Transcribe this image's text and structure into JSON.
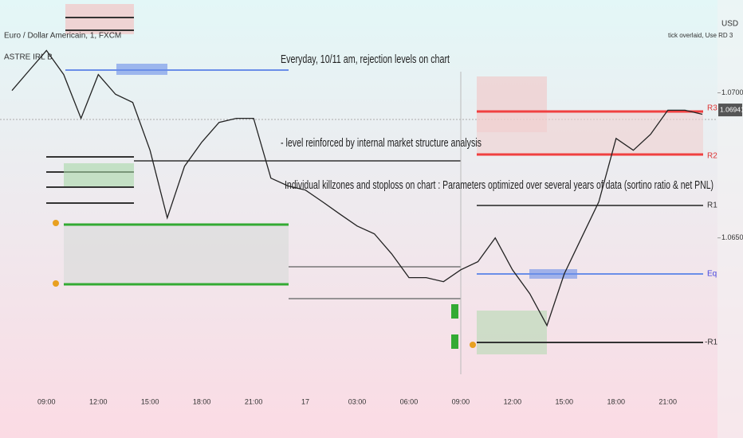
{
  "chart_data": {
    "type": "line",
    "title": "Euro / Dollar Americain, 1, FXCM",
    "subtitle": "ASTRE IRL B",
    "currency": "USD",
    "warning": "tick overlaid, Use RD 3",
    "annotations": [
      "Everyday, 10/11 am, rejection levels on chart",
      "- level reinforced by internal market structure analysis",
      "Individual killzones and stoploss on chart : Parameters optimized over several years of data (sortino ratio & net PNL)"
    ],
    "level_labels": [
      "R3",
      "R2",
      "R1",
      "Eq",
      "-R1"
    ],
    "last_price": {
      "value": 1.06941,
      "label": "1.06941"
    },
    "color": "#222222",
    "categories": [
      null,
      null,
      "09:00",
      null,
      null,
      "12:00",
      null,
      null,
      "15:00",
      null,
      null,
      "18:00",
      null,
      null,
      "21:00",
      null,
      null,
      "17",
      null,
      null,
      "03:00",
      null,
      null,
      "06:00",
      null,
      null,
      "09:00",
      null,
      null,
      "12:00",
      null,
      null,
      "15:00",
      null,
      null,
      "18:00",
      null,
      null,
      "21:00",
      null,
      null
    ],
    "values": [
      1.07008,
      1.07077,
      1.07146,
      1.07063,
      1.06912,
      1.07063,
      1.06995,
      1.06967,
      1.06802,
      1.06569,
      1.06747,
      1.0683,
      1.06898,
      1.06912,
      1.06912,
      1.06706,
      1.06679,
      1.06665,
      1.06624,
      1.06582,
      1.06541,
      1.06514,
      1.06445,
      1.06363,
      1.06363,
      1.06349,
      1.0639,
      1.06418,
      1.065,
      1.0639,
      1.06308,
      1.06198,
      1.06376,
      1.065,
      1.06624,
      1.06843,
      1.06802,
      1.06857,
      1.0694,
      1.0694,
      1.06926
    ],
    "ylim": [
      1.0592,
      1.0732
    ],
    "yticks": [
      {
        "value": 1.065,
        "label": "1.06500"
      },
      {
        "value": 1.07,
        "label": "1.07000"
      }
    ]
  }
}
